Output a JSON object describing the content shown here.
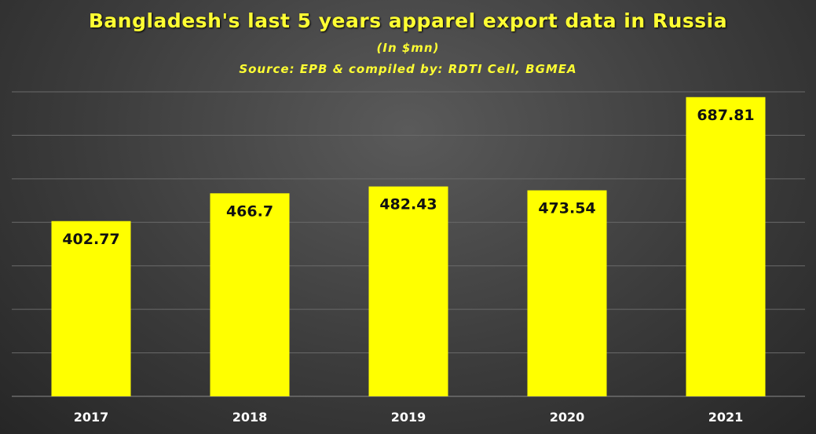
{
  "chart_data": {
    "type": "bar",
    "title": "Bangladesh's last 5 years apparel export data in Russia",
    "subtitle": "(In $mn)",
    "source": "Source: EPB & compiled by: RDTI Cell, BGMEA",
    "categories": [
      "2017",
      "2018",
      "2019",
      "2020",
      "2021"
    ],
    "values": [
      402.77,
      466.7,
      482.43,
      473.54,
      687.81
    ],
    "value_labels": [
      "402.77",
      "466.7",
      "482.43",
      "473.54",
      "687.81"
    ],
    "ylim": [
      0,
      700
    ],
    "grid": true,
    "bar_color": "#ffff00",
    "title_color": "#ffff33"
  }
}
